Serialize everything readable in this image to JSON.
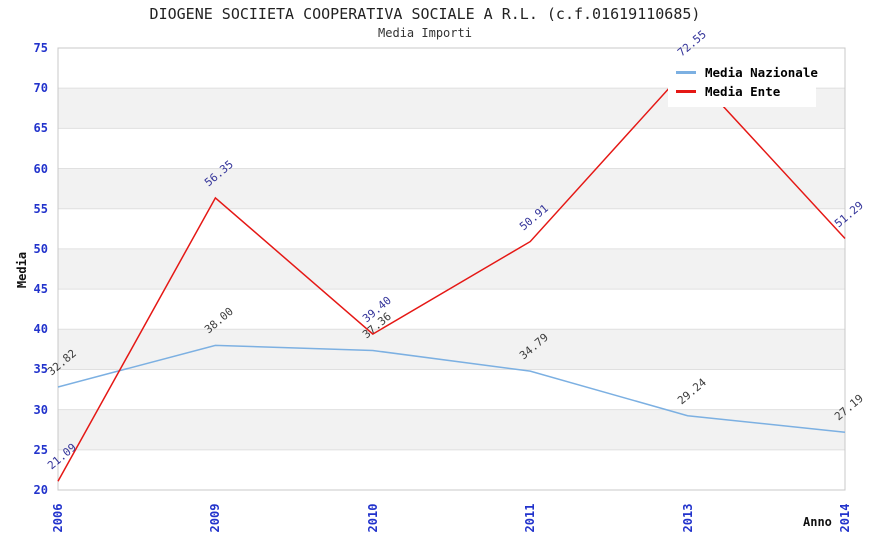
{
  "chart_data": {
    "type": "line",
    "title": "DIOGENE SOCIIETA COOPERATIVA SOCIALE A R.L. (c.f.01619110685)",
    "subtitle": "Media Importi",
    "xlabel": "Anno",
    "ylabel": "Media",
    "categories": [
      "2006",
      "2009",
      "2010",
      "2011",
      "2013",
      "2014"
    ],
    "series": [
      {
        "name": "Media Nazionale",
        "color": "#7cb0e2",
        "label_color": "#3c3c3c",
        "values": [
          32.82,
          38.0,
          37.36,
          34.79,
          29.24,
          27.19
        ]
      },
      {
        "name": "Media Ente",
        "color": "#e51815",
        "label_color": "#333399",
        "values": [
          21.09,
          56.35,
          39.4,
          50.91,
          72.55,
          51.29
        ]
      }
    ],
    "ylim": [
      20,
      75
    ],
    "ytick_step": 5,
    "yticks": [
      20,
      25,
      30,
      35,
      40,
      45,
      50,
      55,
      60,
      65,
      70,
      75
    ],
    "tick_color": "#2233cc",
    "band_color": "#f2f2f2",
    "grid_color": "#e0e0e0",
    "border_color": "#c8c8c8",
    "legend_position": "top-right",
    "grid": "horizontal-bands"
  }
}
